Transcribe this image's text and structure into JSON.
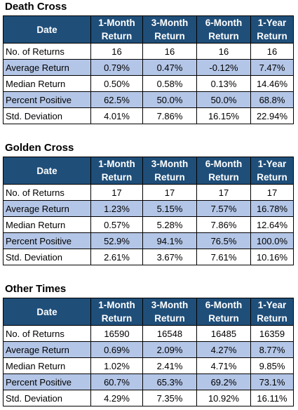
{
  "sections": [
    {
      "title": "Death Cross",
      "headers": [
        "Date",
        "1-Month Return",
        "3-Month Return",
        "6-Month Return",
        "1-Year Return"
      ],
      "rows": [
        {
          "label": "No. of Returns",
          "values": [
            "16",
            "16",
            "16",
            "16"
          ]
        },
        {
          "label": "Average Return",
          "values": [
            "0.79%",
            "0.47%",
            "-0.12%",
            "7.47%"
          ]
        },
        {
          "label": "Median Return",
          "values": [
            "0.50%",
            "0.58%",
            "0.13%",
            "14.46%"
          ]
        },
        {
          "label": "Percent Positive",
          "values": [
            "62.5%",
            "50.0%",
            "50.0%",
            "68.8%"
          ]
        },
        {
          "label": "Std. Deviation",
          "values": [
            "4.01%",
            "7.86%",
            "16.15%",
            "22.94%"
          ]
        }
      ]
    },
    {
      "title": "Golden Cross",
      "headers": [
        "Date",
        "1-Month Return",
        "3-Month Return",
        "6-Month Return",
        "1-Year Return"
      ],
      "rows": [
        {
          "label": "No. of Returns",
          "values": [
            "17",
            "17",
            "17",
            "17"
          ]
        },
        {
          "label": "Average Return",
          "values": [
            "1.23%",
            "5.15%",
            "7.57%",
            "16.78%"
          ]
        },
        {
          "label": "Median Return",
          "values": [
            "0.57%",
            "5.28%",
            "7.86%",
            "12.64%"
          ]
        },
        {
          "label": "Percent Positive",
          "values": [
            "52.9%",
            "94.1%",
            "76.5%",
            "100.0%"
          ]
        },
        {
          "label": "Std. Deviation",
          "values": [
            "2.61%",
            "3.67%",
            "7.61%",
            "10.16%"
          ]
        }
      ]
    },
    {
      "title": "Other Times",
      "headers": [
        "Date",
        "1-Month Return",
        "3-Month Return",
        "6-Month Return",
        "1-Year Return"
      ],
      "rows": [
        {
          "label": "No. of Returns",
          "values": [
            "16590",
            "16548",
            "16485",
            "16359"
          ]
        },
        {
          "label": "Average Return",
          "values": [
            "0.69%",
            "2.09%",
            "4.27%",
            "8.77%"
          ]
        },
        {
          "label": "Median Return",
          "values": [
            "1.02%",
            "2.41%",
            "4.71%",
            "9.85%"
          ]
        },
        {
          "label": "Percent Positive",
          "values": [
            "60.7%",
            "65.3%",
            "69.2%",
            "73.1%"
          ]
        },
        {
          "label": "Std. Deviation",
          "values": [
            "4.29%",
            "7.35%",
            "10.92%",
            "16.11%"
          ]
        }
      ]
    }
  ],
  "colors": {
    "header_bg": "#1f4e79",
    "header_text": "#ffffff",
    "alt_row_bg": "#b4c6e7",
    "plain_row_bg": "#ffffff"
  }
}
